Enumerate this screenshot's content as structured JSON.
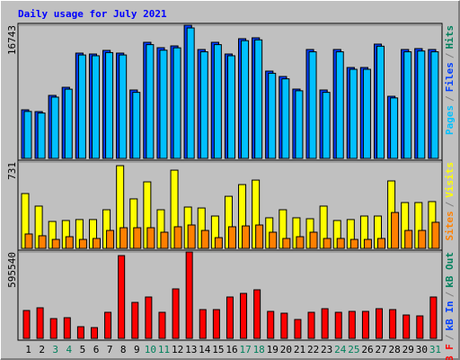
{
  "chart_data": [
    {
      "type": "bar",
      "title": "Daily usage for July 2021",
      "ylim": [
        0,
        16743
      ],
      "yticks": [
        16743
      ],
      "legend_separator": "/",
      "series": [
        {
          "name": "Hits",
          "color": "#00805c",
          "values": [
            6108,
            5882,
            7918,
            8936,
            13235,
            13121,
            13574,
            13235,
            8597,
            14592,
            13913,
            14140,
            16743,
            13687,
            14592,
            13121,
            15044,
            15157,
            10972,
            10293,
            8710,
            13687,
            8597,
            13687,
            11424,
            11424,
            14366,
            7805,
            13687,
            13800,
            13687
          ]
        },
        {
          "name": "Files",
          "color": "#0040ff",
          "values": [
            6108,
            5882,
            7918,
            8936,
            13235,
            13121,
            13574,
            13235,
            8597,
            14592,
            13913,
            14140,
            16743,
            13687,
            14592,
            13121,
            15044,
            15157,
            10972,
            10293,
            8710,
            13687,
            8597,
            13687,
            11424,
            11424,
            14366,
            7805,
            13687,
            13800,
            13687
          ]
        },
        {
          "name": "Pages",
          "color": "#00c0ff",
          "values": [
            5900,
            5700,
            7700,
            8700,
            13000,
            12900,
            13300,
            13000,
            8300,
            14300,
            13600,
            13900,
            16400,
            13400,
            14300,
            12900,
            14800,
            14900,
            10700,
            10000,
            8500,
            13400,
            8300,
            13400,
            11200,
            11200,
            14100,
            7600,
            13400,
            13500,
            13400
          ]
        }
      ]
    },
    {
      "type": "bar",
      "ylim": [
        0,
        731
      ],
      "yticks": [
        731
      ],
      "legend_separator": "/",
      "series": [
        {
          "name": "Visits",
          "color": "#ffff00",
          "values": [
            464,
            358,
            228,
            236,
            244,
            244,
            327,
            700,
            419,
            563,
            327,
            662,
            350,
            342,
            274,
            441,
            540,
            578,
            259,
            327,
            259,
            251,
            358,
            236,
            244,
            274,
            274,
            571,
            388,
            388,
            396
          ]
        },
        {
          "name": "Sites",
          "color": "#ff8000",
          "values": [
            122,
            107,
            76,
            99,
            76,
            84,
            152,
            175,
            175,
            175,
            137,
            183,
            198,
            152,
            91,
            183,
            190,
            198,
            137,
            84,
            99,
            137,
            84,
            84,
            76,
            76,
            84,
            304,
            152,
            152,
            221
          ]
        }
      ]
    },
    {
      "type": "bar",
      "ylim": [
        0,
        595540
      ],
      "yticks": [
        595540
      ],
      "legend_separator": "/",
      "series": [
        {
          "name": "kB Out",
          "color": "#00805c"
        },
        {
          "name": "kB In",
          "color": "#0040ff"
        },
        {
          "name": "kB F",
          "color": "#ff0000",
          "values": [
            192293,
            210902,
            136466,
            142669,
            80639,
            74436,
            179887,
            570676,
            248120,
            285338,
            179887,
            341165,
            595540,
            198496,
            198496,
            285338,
            310150,
            334962,
            186090,
            173684,
            130263,
            179887,
            204699,
            179887,
            186090,
            186090,
            204699,
            198496,
            161278,
            155075,
            285338
          ]
        }
      ],
      "categories": [
        "1",
        "2",
        "3",
        "4",
        "5",
        "6",
        "7",
        "8",
        "9",
        "10",
        "11",
        "12",
        "13",
        "14",
        "15",
        "16",
        "17",
        "18",
        "19",
        "20",
        "21",
        "22",
        "23",
        "24",
        "25",
        "26",
        "27",
        "28",
        "29",
        "30",
        "31"
      ],
      "category_colors": [
        "#000000",
        "#000000",
        "#00805c",
        "#00805c",
        "#000000",
        "#000000",
        "#000000",
        "#000000",
        "#000000",
        "#00805c",
        "#00805c",
        "#000000",
        "#000000",
        "#000000",
        "#000000",
        "#000000",
        "#00805c",
        "#00805c",
        "#000000",
        "#000000",
        "#000000",
        "#000000",
        "#000000",
        "#00805c",
        "#00805c",
        "#000000",
        "#000000",
        "#000000",
        "#000000",
        "#000000",
        "#00805c"
      ]
    }
  ]
}
